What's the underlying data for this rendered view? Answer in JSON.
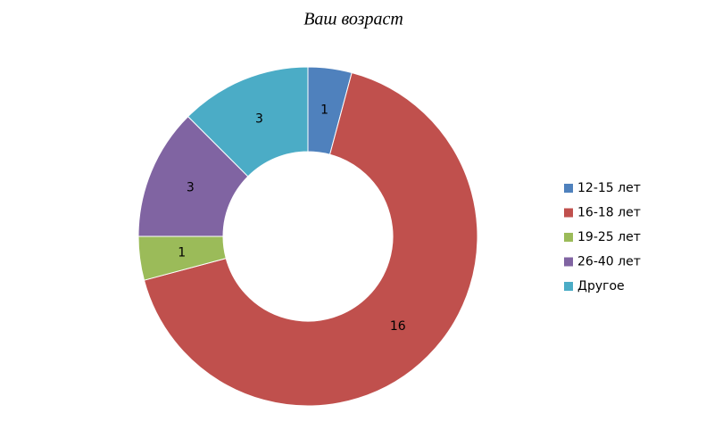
{
  "chart_data": {
    "type": "donut",
    "title": "Ваш возраст",
    "categories": [
      "12-15 лет",
      "16-18 лет",
      "19-25 лет",
      "26-40 лет",
      "Другое"
    ],
    "values": [
      1,
      16,
      1,
      3,
      3
    ],
    "colors": [
      "#4f81bd",
      "#c0504d",
      "#9bbb59",
      "#8064a2",
      "#4bacc6"
    ],
    "legend": "right"
  }
}
